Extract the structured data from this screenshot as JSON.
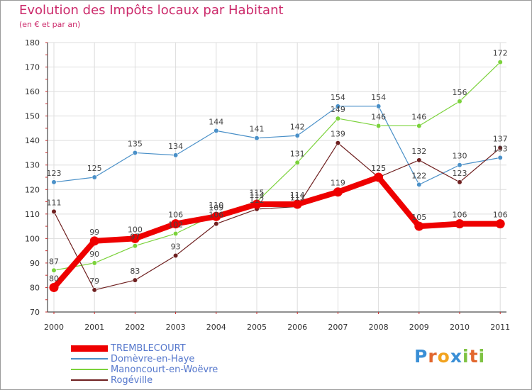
{
  "brand": {
    "text": "Proxiti",
    "letters": [
      {
        "ch": "P",
        "color": "#3a8fd6"
      },
      {
        "ch": "r",
        "color": "#e2672e"
      },
      {
        "ch": "o",
        "color": "#f2a31f"
      },
      {
        "ch": "x",
        "color": "#3a8fd6"
      },
      {
        "ch": "i",
        "color": "#7ec242"
      },
      {
        "ch": "t",
        "color": "#e2672e"
      },
      {
        "ch": "i",
        "color": "#7ec242"
      }
    ]
  },
  "chart_data": {
    "type": "line",
    "title": "Evolution des Impôts locaux par Habitant",
    "subtitle": "(en € et par an)",
    "xlabel": "",
    "ylabel": "",
    "categories": [
      "2000",
      "2001",
      "2002",
      "2003",
      "2004",
      "2005",
      "2006",
      "2007",
      "2008",
      "2009",
      "2010",
      "2011"
    ],
    "ylim": [
      70,
      180
    ],
    "yticks": [
      70,
      80,
      90,
      100,
      110,
      120,
      130,
      140,
      150,
      160,
      170,
      180
    ],
    "legend_position": "bottom-left",
    "series": [
      {
        "name": "Domèvre-en-Haye",
        "color": "#4a90c8",
        "thick": false,
        "values": [
          123,
          125,
          135,
          134,
          144,
          141,
          142,
          154,
          154,
          122,
          130,
          133
        ],
        "labels": [
          "123",
          "125",
          "135",
          "134",
          "144",
          "141",
          "142",
          "154",
          "154",
          "122",
          "130",
          "133"
        ]
      },
      {
        "name": "Manoncourt-en-Woëvre",
        "color": "#7bd23b",
        "thick": false,
        "values": [
          87,
          90,
          97,
          102,
          110,
          115,
          131,
          149,
          146,
          146,
          156,
          172
        ],
        "labels": [
          "87",
          "90",
          "97",
          "102",
          "110",
          "115",
          "131",
          "149",
          "146",
          "146",
          "156",
          "172"
        ]
      },
      {
        "name": "Rogéville",
        "color": "#6e1f1f",
        "thick": false,
        "values": [
          111,
          79,
          83,
          93,
          106,
          112,
          113,
          139,
          125,
          132,
          123,
          137
        ],
        "labels": [
          "111",
          "79",
          "83",
          "93",
          "106",
          "112",
          "113",
          "139",
          "125",
          "132",
          "123",
          "137"
        ]
      },
      {
        "name": "TREMBLECOURT",
        "color": "#ee0000",
        "thick": true,
        "values": [
          80,
          99,
          100,
          106,
          109,
          114,
          114,
          119,
          125,
          105,
          106,
          106
        ],
        "labels": [
          "80",
          "99",
          "100",
          "106",
          "109",
          "114",
          "114",
          "119",
          "125",
          "105",
          "106",
          "106"
        ]
      }
    ],
    "legend_order": [
      3,
      0,
      1,
      2
    ]
  }
}
